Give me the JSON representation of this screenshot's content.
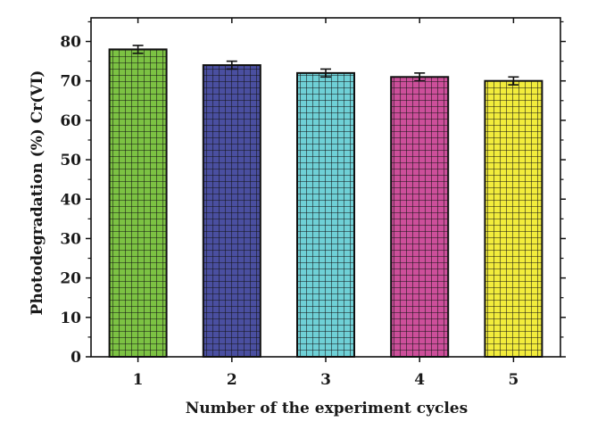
{
  "chart_data": {
    "type": "bar",
    "title": "",
    "xlabel": "Number of the experiment cycles",
    "ylabel": "Photodegradation (%) Cr(VI)",
    "categories": [
      "1",
      "2",
      "3",
      "4",
      "5"
    ],
    "values": [
      78,
      74,
      72,
      71,
      70
    ],
    "errors": [
      1,
      1,
      1,
      1,
      1
    ],
    "ylim": [
      0,
      86
    ],
    "yticks": [
      "0",
      "10",
      "20",
      "30",
      "40",
      "50",
      "60",
      "70",
      "80"
    ],
    "bar_colors": [
      "#7cc243",
      "#4a4fa0",
      "#6fd0d6",
      "#cc4f9a",
      "#f2ec3c"
    ],
    "fill_pattern": "grid",
    "grid": false,
    "legend": "none"
  }
}
